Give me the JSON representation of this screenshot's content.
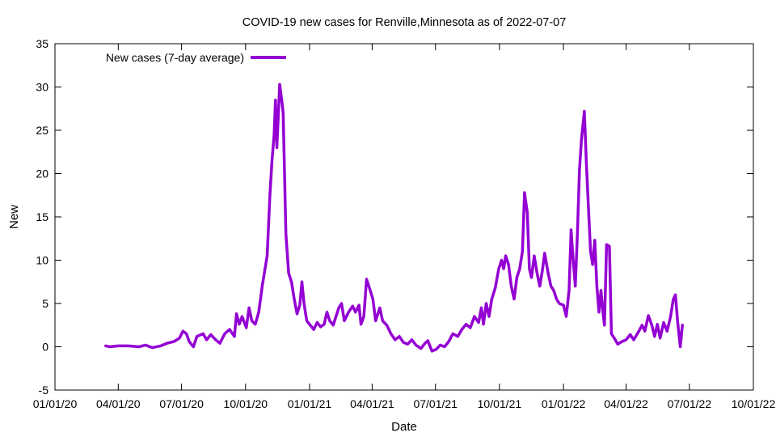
{
  "chart_data": {
    "type": "line",
    "title": "COVID-19 new cases for Renville,Minnesota as of 2022-07-07",
    "xlabel": "Date",
    "ylabel": "New",
    "xlim": [
      "2020-01-01",
      "2022-10-01"
    ],
    "ylim": [
      -5,
      35
    ],
    "x_ticks": [
      "01/01/20",
      "04/01/20",
      "07/01/20",
      "10/01/20",
      "01/01/21",
      "04/01/21",
      "07/01/21",
      "10/01/21",
      "01/01/22",
      "04/01/22",
      "07/01/22",
      "10/01/22"
    ],
    "y_ticks": [
      -5,
      0,
      5,
      10,
      15,
      20,
      25,
      30,
      35
    ],
    "grid": false,
    "legend_position": "top-left",
    "series": [
      {
        "name": "New cases (7-day average)",
        "color": "#9400d3",
        "points": [
          [
            "2020-03-14",
            0.1
          ],
          [
            "2020-03-20",
            0.0
          ],
          [
            "2020-04-01",
            0.1
          ],
          [
            "2020-04-15",
            0.1
          ],
          [
            "2020-05-01",
            0.0
          ],
          [
            "2020-05-10",
            0.2
          ],
          [
            "2020-05-20",
            -0.1
          ],
          [
            "2020-06-01",
            0.1
          ],
          [
            "2020-06-10",
            0.4
          ],
          [
            "2020-06-20",
            0.6
          ],
          [
            "2020-06-28",
            1.0
          ],
          [
            "2020-07-03",
            1.8
          ],
          [
            "2020-07-08",
            1.5
          ],
          [
            "2020-07-12",
            0.6
          ],
          [
            "2020-07-18",
            0.0
          ],
          [
            "2020-07-23",
            1.2
          ],
          [
            "2020-08-01",
            1.5
          ],
          [
            "2020-08-06",
            0.8
          ],
          [
            "2020-08-12",
            1.4
          ],
          [
            "2020-08-18",
            0.9
          ],
          [
            "2020-08-25",
            0.4
          ],
          [
            "2020-09-01",
            1.5
          ],
          [
            "2020-09-08",
            2.0
          ],
          [
            "2020-09-15",
            1.2
          ],
          [
            "2020-09-18",
            3.8
          ],
          [
            "2020-09-22",
            2.6
          ],
          [
            "2020-09-26",
            3.5
          ],
          [
            "2020-10-02",
            2.2
          ],
          [
            "2020-10-06",
            4.5
          ],
          [
            "2020-10-10",
            3.0
          ],
          [
            "2020-10-15",
            2.6
          ],
          [
            "2020-10-20",
            4.0
          ],
          [
            "2020-10-25",
            7.0
          ],
          [
            "2020-10-28",
            8.5
          ],
          [
            "2020-11-01",
            10.5
          ],
          [
            "2020-11-05",
            17.5
          ],
          [
            "2020-11-08",
            21.5
          ],
          [
            "2020-11-11",
            24.5
          ],
          [
            "2020-11-13",
            28.5
          ],
          [
            "2020-11-15",
            23.0
          ],
          [
            "2020-11-17",
            26.5
          ],
          [
            "2020-11-19",
            30.3
          ],
          [
            "2020-11-22",
            28.5
          ],
          [
            "2020-11-24",
            27.0
          ],
          [
            "2020-11-26",
            20.0
          ],
          [
            "2020-11-28",
            13.0
          ],
          [
            "2020-12-02",
            8.5
          ],
          [
            "2020-12-06",
            7.5
          ],
          [
            "2020-12-10",
            5.5
          ],
          [
            "2020-12-14",
            3.8
          ],
          [
            "2020-12-18",
            4.8
          ],
          [
            "2020-12-21",
            7.5
          ],
          [
            "2020-12-24",
            5.0
          ],
          [
            "2020-12-28",
            3.0
          ],
          [
            "2021-01-02",
            2.5
          ],
          [
            "2021-01-07",
            2.0
          ],
          [
            "2021-01-12",
            2.8
          ],
          [
            "2021-01-17",
            2.3
          ],
          [
            "2021-01-22",
            2.6
          ],
          [
            "2021-01-26",
            4.0
          ],
          [
            "2021-01-30",
            3.0
          ],
          [
            "2021-02-04",
            2.5
          ],
          [
            "2021-02-08",
            3.5
          ],
          [
            "2021-02-12",
            4.5
          ],
          [
            "2021-02-16",
            5.0
          ],
          [
            "2021-02-20",
            3.0
          ],
          [
            "2021-02-26",
            4.0
          ],
          [
            "2021-03-04",
            4.7
          ],
          [
            "2021-03-08",
            4.0
          ],
          [
            "2021-03-13",
            4.8
          ],
          [
            "2021-03-16",
            2.6
          ],
          [
            "2021-03-20",
            3.5
          ],
          [
            "2021-03-24",
            7.8
          ],
          [
            "2021-03-28",
            6.8
          ],
          [
            "2021-04-02",
            5.5
          ],
          [
            "2021-04-06",
            3.0
          ],
          [
            "2021-04-12",
            4.5
          ],
          [
            "2021-04-16",
            3.0
          ],
          [
            "2021-04-22",
            2.5
          ],
          [
            "2021-04-28",
            1.5
          ],
          [
            "2021-05-04",
            0.8
          ],
          [
            "2021-05-10",
            1.2
          ],
          [
            "2021-05-16",
            0.5
          ],
          [
            "2021-05-22",
            0.3
          ],
          [
            "2021-05-28",
            0.8
          ],
          [
            "2021-06-03",
            0.2
          ],
          [
            "2021-06-10",
            -0.2
          ],
          [
            "2021-06-16",
            0.4
          ],
          [
            "2021-06-20",
            0.7
          ],
          [
            "2021-06-26",
            -0.5
          ],
          [
            "2021-07-02",
            -0.3
          ],
          [
            "2021-07-08",
            0.2
          ],
          [
            "2021-07-14",
            0.0
          ],
          [
            "2021-07-20",
            0.6
          ],
          [
            "2021-07-26",
            1.5
          ],
          [
            "2021-08-02",
            1.2
          ],
          [
            "2021-08-08",
            2.0
          ],
          [
            "2021-08-14",
            2.6
          ],
          [
            "2021-08-20",
            2.2
          ],
          [
            "2021-08-26",
            3.5
          ],
          [
            "2021-09-01",
            2.8
          ],
          [
            "2021-09-05",
            4.5
          ],
          [
            "2021-09-08",
            2.6
          ],
          [
            "2021-09-12",
            5.0
          ],
          [
            "2021-09-16",
            3.5
          ],
          [
            "2021-09-20",
            5.5
          ],
          [
            "2021-09-25",
            6.8
          ],
          [
            "2021-09-30",
            9.0
          ],
          [
            "2021-10-04",
            10.0
          ],
          [
            "2021-10-07",
            9.0
          ],
          [
            "2021-10-10",
            10.5
          ],
          [
            "2021-10-14",
            9.5
          ],
          [
            "2021-10-18",
            7.0
          ],
          [
            "2021-10-22",
            5.5
          ],
          [
            "2021-10-26",
            8.0
          ],
          [
            "2021-10-30",
            9.0
          ],
          [
            "2021-11-03",
            11.0
          ],
          [
            "2021-11-06",
            17.8
          ],
          [
            "2021-11-10",
            15.5
          ],
          [
            "2021-11-13",
            9.0
          ],
          [
            "2021-11-16",
            8.0
          ],
          [
            "2021-11-20",
            10.5
          ],
          [
            "2021-11-24",
            8.5
          ],
          [
            "2021-11-28",
            7.0
          ],
          [
            "2021-12-02",
            9.0
          ],
          [
            "2021-12-05",
            10.8
          ],
          [
            "2021-12-10",
            8.5
          ],
          [
            "2021-12-14",
            7.0
          ],
          [
            "2021-12-18",
            6.5
          ],
          [
            "2021-12-22",
            5.5
          ],
          [
            "2021-12-26",
            5.0
          ],
          [
            "2022-01-01",
            4.8
          ],
          [
            "2022-01-05",
            3.5
          ],
          [
            "2022-01-09",
            6.5
          ],
          [
            "2022-01-12",
            13.5
          ],
          [
            "2022-01-15",
            10.0
          ],
          [
            "2022-01-18",
            7.0
          ],
          [
            "2022-01-21",
            13.0
          ],
          [
            "2022-01-24",
            20.5
          ],
          [
            "2022-01-27",
            24.0
          ],
          [
            "2022-01-31",
            27.2
          ],
          [
            "2022-02-03",
            21.0
          ],
          [
            "2022-02-06",
            16.0
          ],
          [
            "2022-02-09",
            11.0
          ],
          [
            "2022-02-12",
            9.5
          ],
          [
            "2022-02-15",
            12.3
          ],
          [
            "2022-02-18",
            7.0
          ],
          [
            "2022-02-21",
            4.0
          ],
          [
            "2022-02-24",
            6.5
          ],
          [
            "2022-02-27",
            3.8
          ],
          [
            "2022-03-01",
            2.5
          ],
          [
            "2022-03-04",
            11.8
          ],
          [
            "2022-03-08",
            11.6
          ],
          [
            "2022-03-11",
            1.5
          ],
          [
            "2022-03-15",
            1.0
          ],
          [
            "2022-03-20",
            0.3
          ],
          [
            "2022-03-26",
            0.6
          ],
          [
            "2022-04-01",
            0.8
          ],
          [
            "2022-04-07",
            1.4
          ],
          [
            "2022-04-12",
            0.8
          ],
          [
            "2022-04-18",
            1.6
          ],
          [
            "2022-04-24",
            2.5
          ],
          [
            "2022-04-28",
            1.8
          ],
          [
            "2022-05-03",
            3.6
          ],
          [
            "2022-05-08",
            2.5
          ],
          [
            "2022-05-12",
            1.2
          ],
          [
            "2022-05-16",
            2.6
          ],
          [
            "2022-05-20",
            1.0
          ],
          [
            "2022-05-25",
            2.8
          ],
          [
            "2022-05-30",
            1.8
          ],
          [
            "2022-06-04",
            3.5
          ],
          [
            "2022-06-08",
            5.5
          ],
          [
            "2022-06-11",
            6.0
          ],
          [
            "2022-06-14",
            3.0
          ],
          [
            "2022-06-18",
            0.0
          ],
          [
            "2022-06-21",
            2.5
          ]
        ]
      }
    ]
  }
}
